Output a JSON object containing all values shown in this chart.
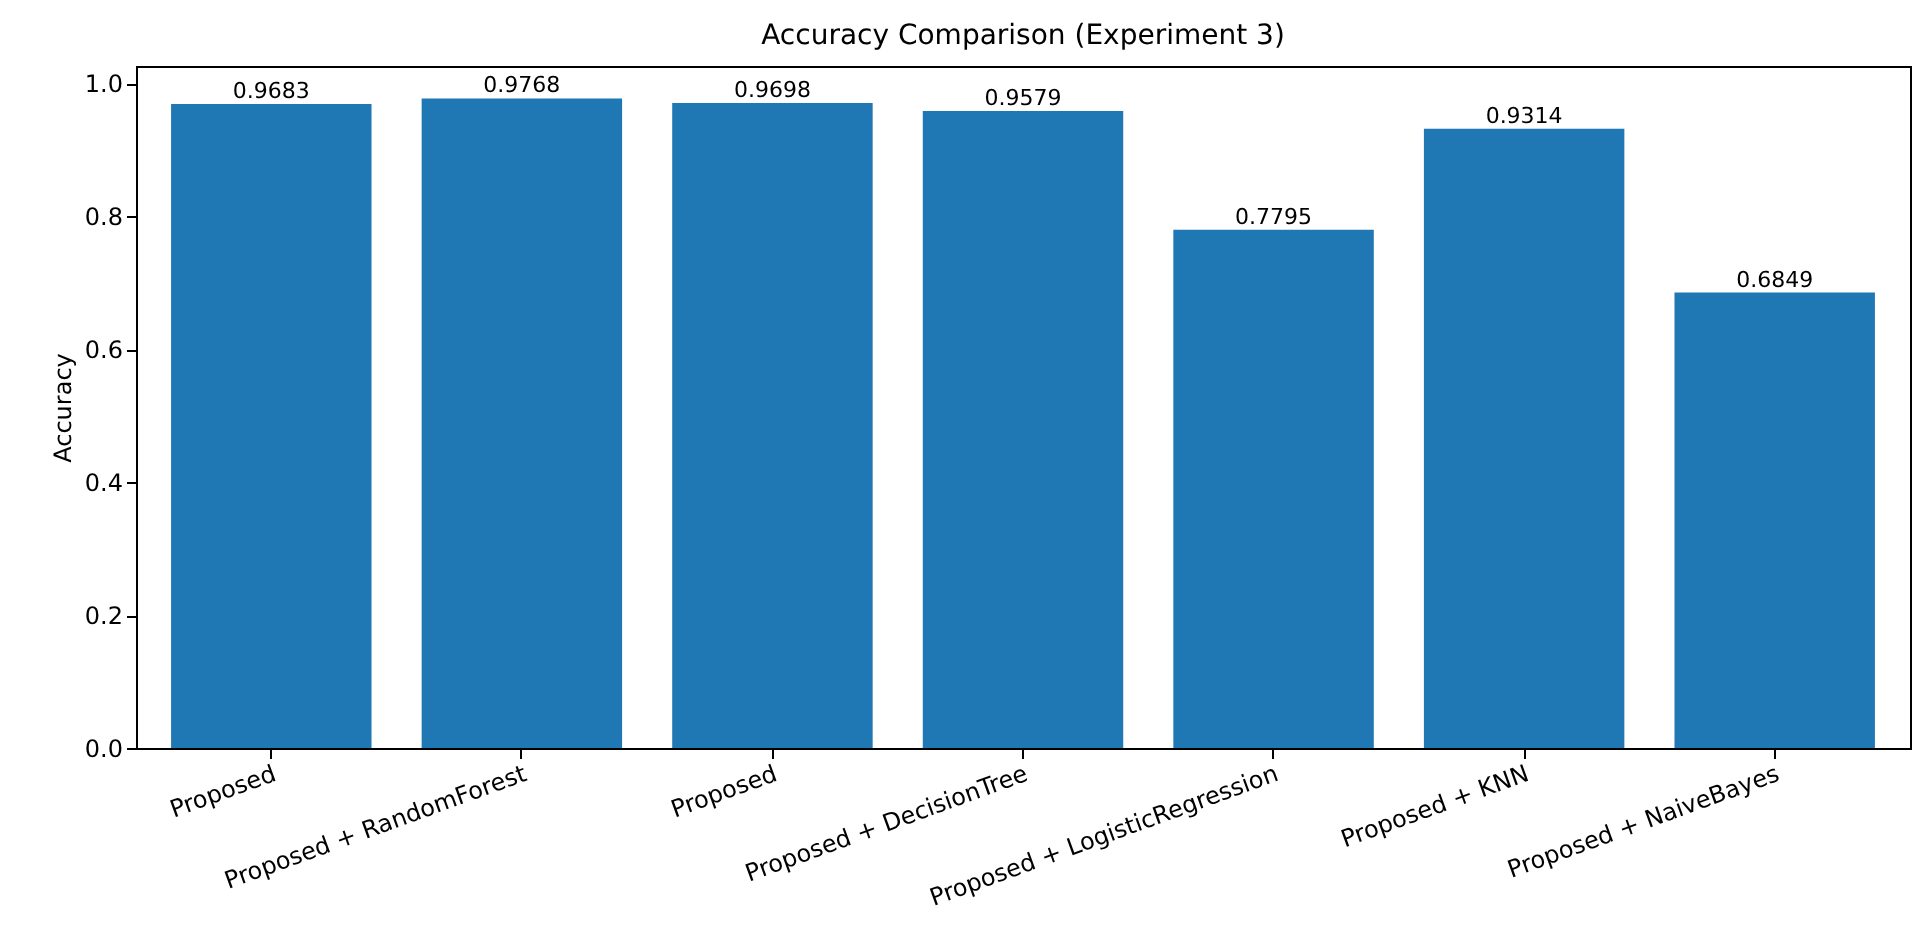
{
  "chart_data": {
    "type": "bar",
    "title": "Accuracy Comparison (Experiment 3)",
    "ylabel": "Accuracy",
    "categories": [
      "Proposed",
      "Proposed + RandomForest",
      "Proposed",
      "Proposed + DecisionTree",
      "Proposed + LogisticRegression",
      "Proposed + KNN",
      "Proposed + NaiveBayes"
    ],
    "values": [
      0.9683,
      0.9768,
      0.9698,
      0.9579,
      0.7795,
      0.9314,
      0.6849
    ],
    "color": "#1f77b4",
    "ylim": [
      0,
      1.0256
    ],
    "yticks": [
      {
        "value": 0,
        "label": "0.0"
      },
      0.2,
      0.4,
      0.6,
      0.8,
      {
        "value": 1,
        "label": "1.0"
      }
    ],
    "grid": false,
    "data_labels": true
  }
}
